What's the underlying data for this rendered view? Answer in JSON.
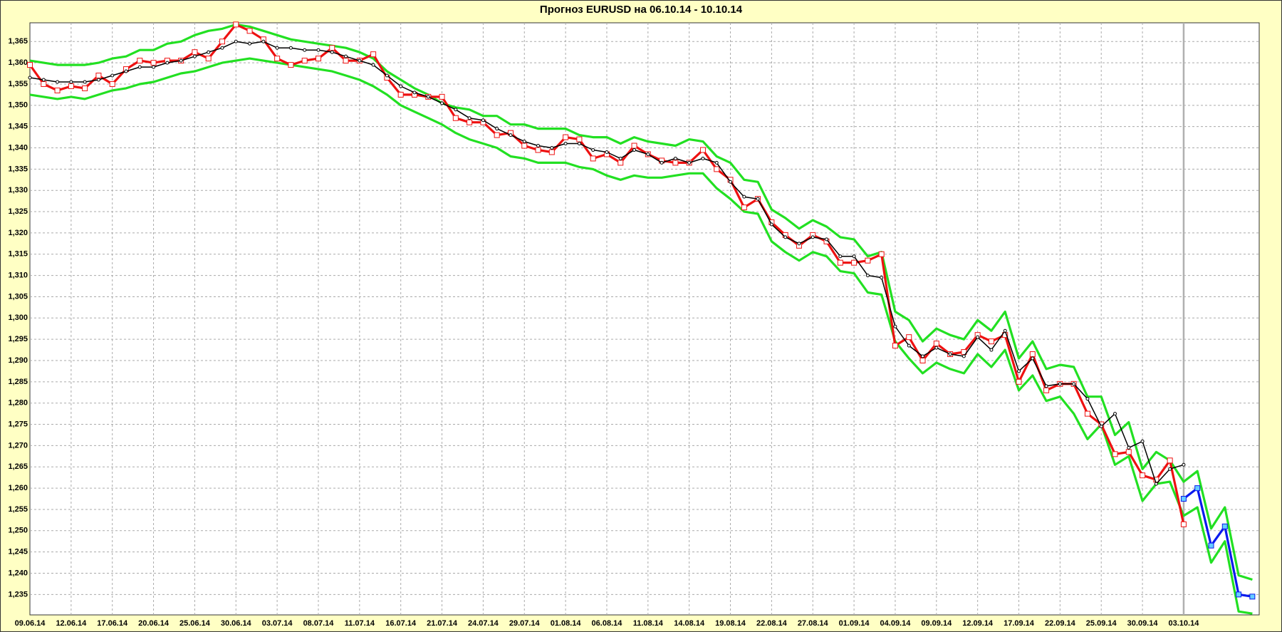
{
  "chart_data": {
    "type": "line",
    "title": "Прогноз EURUSD на 06.10.14 - 10.10.14",
    "categories": [
      "09.06.14",
      null,
      null,
      "12.06.14",
      null,
      null,
      "17.06.14",
      null,
      null,
      "20.06.14",
      null,
      null,
      "25.06.14",
      null,
      null,
      "30.06.14",
      null,
      null,
      "03.07.14",
      null,
      null,
      "08.07.14",
      null,
      null,
      "11.07.14",
      null,
      null,
      "16.07.14",
      null,
      null,
      "21.07.14",
      null,
      null,
      "24.07.14",
      null,
      null,
      "29.07.14",
      null,
      null,
      "01.08.14",
      null,
      null,
      "06.08.14",
      null,
      null,
      "11.08.14",
      null,
      null,
      "14.08.14",
      null,
      null,
      "19.08.14",
      null,
      null,
      "22.08.14",
      null,
      null,
      "27.08.14",
      null,
      null,
      "01.09.14",
      null,
      null,
      "04.09.14",
      null,
      null,
      "09.09.14",
      null,
      null,
      "12.09.14",
      null,
      null,
      "17.09.14",
      null,
      null,
      "22.09.14",
      null,
      null,
      "25.09.14",
      null,
      null,
      "30.09.14",
      null,
      null,
      "03.10.14",
      null,
      null,
      null,
      null,
      null
    ],
    "ylim": [
      1.2302,
      1.3694
    ],
    "yticks": [
      {
        "value": 1.235,
        "label": "1,235"
      },
      {
        "value": 1.24,
        "label": "1,240"
      },
      {
        "value": 1.245,
        "label": "1,245"
      },
      {
        "value": 1.25,
        "label": "1,250"
      },
      {
        "value": 1.255,
        "label": "1,255"
      },
      {
        "value": 1.26,
        "label": "1,260"
      },
      {
        "value": 1.265,
        "label": "1,265"
      },
      {
        "value": 1.27,
        "label": "1,270"
      },
      {
        "value": 1.275,
        "label": "1,275"
      },
      {
        "value": 1.28,
        "label": "1,280"
      },
      {
        "value": 1.285,
        "label": "1,285"
      },
      {
        "value": 1.29,
        "label": "1,290"
      },
      {
        "value": 1.295,
        "label": "1,295"
      },
      {
        "value": 1.3,
        "label": "1,300"
      },
      {
        "value": 1.305,
        "label": "1,305"
      },
      {
        "value": 1.31,
        "label": "1,310"
      },
      {
        "value": 1.315,
        "label": "1,315"
      },
      {
        "value": 1.32,
        "label": "1,320"
      },
      {
        "value": 1.325,
        "label": "1,325"
      },
      {
        "value": 1.33,
        "label": "1,330"
      },
      {
        "value": 1.335,
        "label": "1,335"
      },
      {
        "value": 1.34,
        "label": "1,340"
      },
      {
        "value": 1.345,
        "label": "1,345"
      },
      {
        "value": 1.35,
        "label": "1,350"
      },
      {
        "value": 1.355,
        "label": "1,355"
      },
      {
        "value": 1.36,
        "label": "1,360"
      },
      {
        "value": 1.365,
        "label": "1,365"
      }
    ],
    "grid": true,
    "series": [
      {
        "color": "#22e022",
        "marker": "none",
        "values": [
          1.3605,
          1.36,
          1.3595,
          1.3595,
          1.3595,
          1.36,
          1.361,
          1.3615,
          1.363,
          1.363,
          1.3645,
          1.365,
          1.3665,
          1.3675,
          1.368,
          1.369,
          1.3685,
          1.3675,
          1.3665,
          1.3655,
          1.365,
          1.3645,
          1.364,
          1.3635,
          1.3625,
          1.361,
          1.358,
          1.356,
          1.354,
          1.3525,
          1.3505,
          1.3495,
          1.349,
          1.3475,
          1.3475,
          1.3455,
          1.3455,
          1.3445,
          1.3445,
          1.3445,
          1.343,
          1.3425,
          1.3425,
          1.341,
          1.3425,
          1.3415,
          1.341,
          1.3405,
          1.342,
          1.3415,
          1.338,
          1.3365,
          1.3325,
          1.332,
          1.3255,
          1.3235,
          1.321,
          1.323,
          1.3215,
          1.319,
          1.3185,
          1.3145,
          1.3155,
          1.3015,
          1.2995,
          1.2945,
          1.2975,
          1.296,
          1.295,
          1.2995,
          1.297,
          1.3015,
          1.2905,
          1.2945,
          1.288,
          1.289,
          1.2885,
          1.2815,
          1.2815,
          1.2725,
          1.2755,
          1.2645,
          1.2685,
          1.2665,
          1.2615,
          1.264,
          1.2505,
          1.2555,
          1.2395,
          1.2385
        ]
      },
      {
        "color": "#22e022",
        "marker": "none",
        "values": [
          1.3525,
          1.352,
          1.3515,
          1.352,
          1.3515,
          1.3525,
          1.3535,
          1.354,
          1.355,
          1.3555,
          1.3565,
          1.3575,
          1.358,
          1.359,
          1.36,
          1.3605,
          1.361,
          1.3605,
          1.36,
          1.3595,
          1.359,
          1.3585,
          1.358,
          1.357,
          1.356,
          1.3545,
          1.3525,
          1.35,
          1.3485,
          1.347,
          1.3455,
          1.3435,
          1.342,
          1.341,
          1.34,
          1.338,
          1.3375,
          1.3365,
          1.3365,
          1.3365,
          1.3355,
          1.335,
          1.3335,
          1.3325,
          1.3335,
          1.333,
          1.333,
          1.3335,
          1.334,
          1.334,
          1.3305,
          1.328,
          1.325,
          1.3245,
          1.318,
          1.3155,
          1.3135,
          1.3155,
          1.3145,
          1.311,
          1.3105,
          1.306,
          1.3055,
          1.2945,
          1.2905,
          1.287,
          1.2895,
          1.288,
          1.287,
          1.2915,
          1.2885,
          1.2925,
          1.283,
          1.2865,
          1.2805,
          1.2815,
          1.2775,
          1.2715,
          1.275,
          1.2655,
          1.2675,
          1.257,
          1.261,
          1.2615,
          1.2535,
          1.2555,
          1.2425,
          1.2475,
          1.231,
          1.2305
        ]
      },
      {
        "color": "#ee1111",
        "marker": "square",
        "values": [
          1.3595,
          1.355,
          1.3535,
          1.3545,
          1.354,
          1.357,
          1.355,
          1.3585,
          1.3605,
          1.36,
          1.3605,
          1.3605,
          1.3625,
          1.361,
          1.365,
          1.369,
          1.3675,
          1.3655,
          1.361,
          1.3595,
          1.3605,
          1.361,
          1.3635,
          1.3605,
          1.3605,
          1.362,
          1.3565,
          1.3525,
          1.3525,
          1.352,
          1.352,
          1.347,
          1.346,
          1.346,
          1.343,
          1.3435,
          1.3405,
          1.3395,
          1.339,
          1.3425,
          1.342,
          1.3375,
          1.3385,
          1.3365,
          1.3405,
          1.3385,
          1.337,
          1.3365,
          1.3365,
          1.3395,
          1.335,
          1.3325,
          1.326,
          1.328,
          1.3225,
          1.3195,
          1.317,
          1.3195,
          1.318,
          1.313,
          1.313,
          1.3135,
          1.315,
          1.2935,
          1.2955,
          1.29,
          1.294,
          1.2915,
          1.292,
          1.296,
          1.2945,
          1.296,
          1.285,
          1.2915,
          1.283,
          1.2845,
          1.2845,
          1.2775,
          1.275,
          1.268,
          1.2685,
          1.263,
          1.262,
          1.2665,
          1.2515,
          null,
          null,
          null,
          null,
          null
        ]
      },
      {
        "color": "#000000",
        "marker": "circle",
        "values": [
          1.3565,
          1.356,
          1.3555,
          1.3555,
          1.3555,
          1.356,
          1.357,
          1.358,
          1.359,
          1.359,
          1.36,
          1.3605,
          1.3615,
          1.3625,
          1.3635,
          1.365,
          1.3645,
          1.365,
          1.3635,
          1.3635,
          1.363,
          1.363,
          1.3625,
          1.3615,
          1.3605,
          1.3595,
          1.357,
          1.3545,
          1.353,
          1.352,
          1.3505,
          1.349,
          1.347,
          1.3465,
          1.3445,
          1.343,
          1.3415,
          1.3405,
          1.34,
          1.341,
          1.341,
          1.3395,
          1.339,
          1.3375,
          1.3395,
          1.3385,
          1.3365,
          1.3375,
          1.3365,
          1.3375,
          1.3365,
          1.332,
          1.3285,
          1.328,
          1.322,
          1.319,
          1.3175,
          1.319,
          1.3185,
          1.3145,
          1.3145,
          1.31,
          1.3095,
          1.298,
          1.2935,
          1.291,
          1.293,
          1.2915,
          1.291,
          1.2955,
          1.2925,
          1.297,
          1.2875,
          1.2905,
          1.284,
          1.2845,
          1.2845,
          1.281,
          1.2745,
          1.2775,
          1.2695,
          1.271,
          1.261,
          1.2645,
          1.2655,
          null,
          null,
          null,
          null,
          null
        ]
      },
      {
        "color": "#0a1aee",
        "marker": "square",
        "values": [
          null,
          null,
          null,
          null,
          null,
          null,
          null,
          null,
          null,
          null,
          null,
          null,
          null,
          null,
          null,
          null,
          null,
          null,
          null,
          null,
          null,
          null,
          null,
          null,
          null,
          null,
          null,
          null,
          null,
          null,
          null,
          null,
          null,
          null,
          null,
          null,
          null,
          null,
          null,
          null,
          null,
          null,
          null,
          null,
          null,
          null,
          null,
          null,
          null,
          null,
          null,
          null,
          null,
          null,
          null,
          null,
          null,
          null,
          null,
          null,
          null,
          null,
          null,
          null,
          null,
          null,
          null,
          null,
          null,
          null,
          null,
          null,
          null,
          null,
          null,
          null,
          null,
          null,
          null,
          null,
          null,
          null,
          null,
          null,
          1.2575,
          1.26,
          1.2465,
          1.251,
          1.235,
          1.2345
        ]
      }
    ]
  }
}
